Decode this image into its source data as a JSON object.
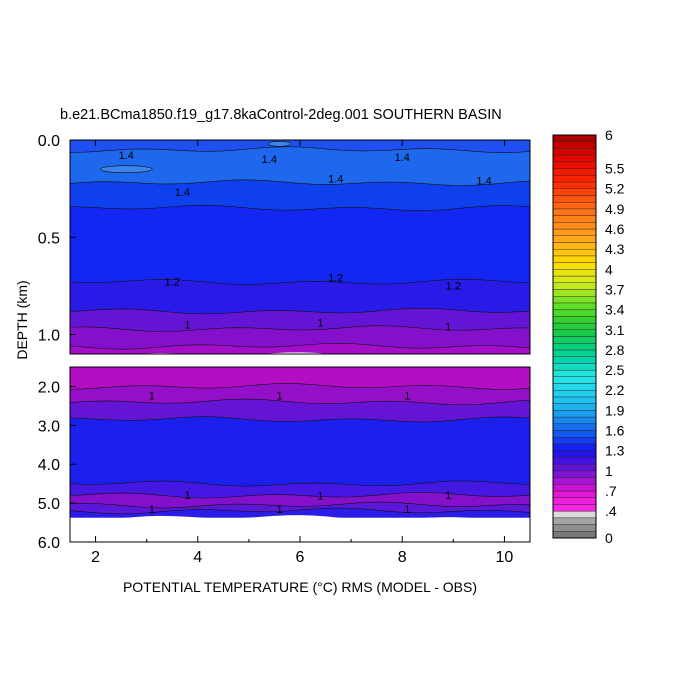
{
  "chart_data": {
    "type": "heatmap",
    "title": "b.e21.BCma1850.f19_g17.8kaControl-2deg.001 SOUTHERN BASIN",
    "xlabel": "POTENTIAL TEMPERATURE (°C) RMS (MODEL - OBS)",
    "ylabel": "DEPTH (km)",
    "xlim": [
      1.5,
      10.5
    ],
    "x_ticks": [
      2,
      4,
      6,
      8,
      10
    ],
    "x_tick_labels": [
      "2",
      "4",
      "6",
      "8",
      "10"
    ],
    "upper_panel": {
      "ylim": [
        0.0,
        1.1
      ],
      "y_ticks": [
        0.0,
        0.5,
        1.0
      ],
      "y_tick_labels": [
        "0.0",
        "0.5",
        "1.0"
      ]
    },
    "lower_panel": {
      "ylim": [
        1.5,
        6.0
      ],
      "y_ticks": [
        2.0,
        3.0,
        4.0,
        5.0,
        6.0
      ],
      "y_tick_labels": [
        "2.0",
        "3.0",
        "4.0",
        "5.0",
        "6.0"
      ]
    },
    "colorbar": {
      "range": [
        0,
        6
      ],
      "labels": [
        {
          "value": 6,
          "text": "6"
        },
        {
          "value": 5.5,
          "text": "5.5"
        },
        {
          "value": 5.2,
          "text": "5.2"
        },
        {
          "value": 4.9,
          "text": "4.9"
        },
        {
          "value": 4.6,
          "text": "4.6"
        },
        {
          "value": 4.3,
          "text": "4.3"
        },
        {
          "value": 4,
          "text": "4"
        },
        {
          "value": 3.7,
          "text": "3.7"
        },
        {
          "value": 3.4,
          "text": "3.4"
        },
        {
          "value": 3.1,
          "text": "3.1"
        },
        {
          "value": 2.8,
          "text": "2.8"
        },
        {
          "value": 2.5,
          "text": "2.5"
        },
        {
          "value": 2.2,
          "text": "2.2"
        },
        {
          "value": 1.9,
          "text": "1.9"
        },
        {
          "value": 1.6,
          "text": "1.6"
        },
        {
          "value": 1.3,
          "text": "1.3"
        },
        {
          "value": 1,
          "text": "1"
        },
        {
          "value": 0.7,
          "text": ".7"
        },
        {
          "value": 0.4,
          "text": ".4"
        },
        {
          "value": 0,
          "text": "0"
        }
      ]
    },
    "upper_bands": [
      {
        "from": 0.0,
        "to": 0.05,
        "value": 1.45,
        "color": "#1f4ff0"
      },
      {
        "from": 0.05,
        "to": 0.22,
        "value": 1.5,
        "color": "#1d68ec"
      },
      {
        "from": 0.22,
        "to": 0.35,
        "value": 1.35,
        "color": "#0f40ee"
      },
      {
        "from": 0.35,
        "to": 0.73,
        "value": 1.25,
        "color": "#1426f2"
      },
      {
        "from": 0.73,
        "to": 0.88,
        "value": 1.15,
        "color": "#2a1ae8"
      },
      {
        "from": 0.88,
        "to": 0.97,
        "value": 1.05,
        "color": "#6414d4"
      },
      {
        "from": 0.97,
        "to": 1.06,
        "value": 0.95,
        "color": "#8410cc"
      },
      {
        "from": 1.06,
        "to": 1.1,
        "value": 0.85,
        "color": "#a50ec8"
      }
    ],
    "lower_bands": [
      {
        "from": 1.5,
        "to": 2.0,
        "value": 0.85,
        "color": "#b40ec4"
      },
      {
        "from": 2.0,
        "to": 2.4,
        "value": 0.95,
        "color": "#9410c8"
      },
      {
        "from": 2.4,
        "to": 2.85,
        "value": 1.05,
        "color": "#6414d4"
      },
      {
        "from": 2.85,
        "to": 4.5,
        "value": 1.2,
        "color": "#1c20ee"
      },
      {
        "from": 4.5,
        "to": 4.8,
        "value": 1.05,
        "color": "#4418e2"
      },
      {
        "from": 4.8,
        "to": 5.05,
        "value": 0.95,
        "color": "#8410cc"
      },
      {
        "from": 5.05,
        "to": 5.2,
        "value": 1.05,
        "color": "#5c16d8"
      },
      {
        "from": 5.2,
        "to": 5.35,
        "value": 1.15,
        "color": "#2c1ce8"
      }
    ],
    "contour_labels": [
      {
        "text": "1.4",
        "x": 2.6,
        "y": 0.08,
        "panel": "upper"
      },
      {
        "text": "1.4",
        "x": 5.4,
        "y": 0.1,
        "panel": "upper"
      },
      {
        "text": "1.4",
        "x": 8.0,
        "y": 0.09,
        "panel": "upper"
      },
      {
        "text": "1.4",
        "x": 3.7,
        "y": 0.27,
        "panel": "upper"
      },
      {
        "text": "1.4",
        "x": 6.7,
        "y": 0.2,
        "panel": "upper"
      },
      {
        "text": "1.4",
        "x": 9.6,
        "y": 0.21,
        "panel": "upper"
      },
      {
        "text": "1.2",
        "x": 3.5,
        "y": 0.73,
        "panel": "upper"
      },
      {
        "text": "1.2",
        "x": 6.7,
        "y": 0.71,
        "panel": "upper"
      },
      {
        "text": "1.2",
        "x": 9.0,
        "y": 0.75,
        "panel": "upper"
      },
      {
        "text": "1",
        "x": 3.8,
        "y": 0.95,
        "panel": "upper"
      },
      {
        "text": "1",
        "x": 6.4,
        "y": 0.94,
        "panel": "upper"
      },
      {
        "text": "1",
        "x": 8.9,
        "y": 0.96,
        "panel": "upper"
      },
      {
        "text": "1",
        "x": 3.1,
        "y": 2.25,
        "panel": "lower"
      },
      {
        "text": "1",
        "x": 5.6,
        "y": 2.25,
        "panel": "lower"
      },
      {
        "text": "1",
        "x": 8.1,
        "y": 2.25,
        "panel": "lower"
      },
      {
        "text": "1",
        "x": 3.8,
        "y": 4.8,
        "panel": "lower"
      },
      {
        "text": "1",
        "x": 6.4,
        "y": 4.82,
        "panel": "lower"
      },
      {
        "text": "1",
        "x": 8.9,
        "y": 4.8,
        "panel": "lower"
      },
      {
        "text": "1",
        "x": 3.1,
        "y": 5.17,
        "panel": "lower"
      },
      {
        "text": "1",
        "x": 5.6,
        "y": 5.17,
        "panel": "lower"
      },
      {
        "text": "1",
        "x": 8.1,
        "y": 5.17,
        "panel": "lower"
      }
    ],
    "grid": false,
    "legend": "colorbar-right"
  }
}
